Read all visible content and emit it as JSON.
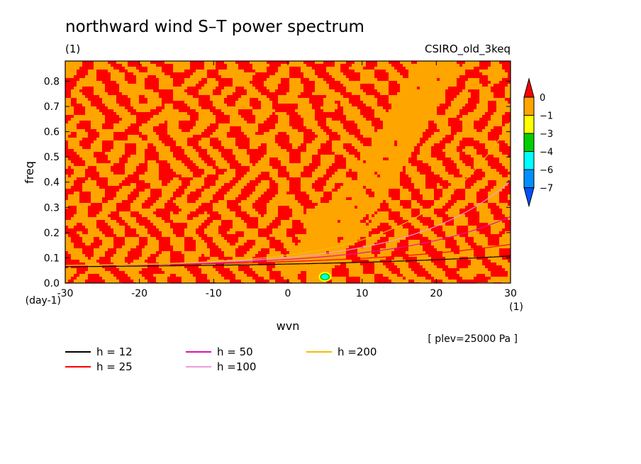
{
  "chart_data": {
    "type": "heatmap",
    "title": "northward wind S–T power spectrum",
    "subtitle_left": "(1)",
    "subtitle_right": "CSIRO_old_3keq",
    "xlabel": "wvn",
    "ylabel": "freq",
    "x_unit": "(1)",
    "y_unit": "(day-1)",
    "xlim": [
      -30,
      30
    ],
    "ylim": [
      0,
      0.88
    ],
    "x_ticks": [
      "-30",
      "-20",
      "-10",
      "0",
      "10",
      "20",
      "30"
    ],
    "y_ticks": [
      "0.0",
      "0.1",
      "0.2",
      "0.3",
      "0.4",
      "0.5",
      "0.6",
      "0.7",
      "0.8"
    ],
    "note": "[ plev=25000 Pa ]",
    "colorbar": {
      "labels": [
        "0",
        "−1",
        "−3",
        "−4",
        "−6",
        "−7"
      ],
      "colors": [
        "#ff0000",
        "#ffa500",
        "#ffff00",
        "#00d000",
        "#00ffff",
        "#0090ff",
        "#0050ff"
      ]
    },
    "field_levels": {
      "high": -0.5,
      "background": -1,
      "feature_center": {
        "x": 5,
        "y": 0.025
      }
    },
    "dispersion_curves": [
      {
        "label": "h = 12",
        "color": "#000000"
      },
      {
        "label": "h = 25",
        "color": "#ff0000"
      },
      {
        "label": "h = 50",
        "color": "#e010b0"
      },
      {
        "label": "h =100",
        "color": "#e8a0d8"
      },
      {
        "label": "h =200",
        "color": "#f0c000"
      }
    ]
  }
}
